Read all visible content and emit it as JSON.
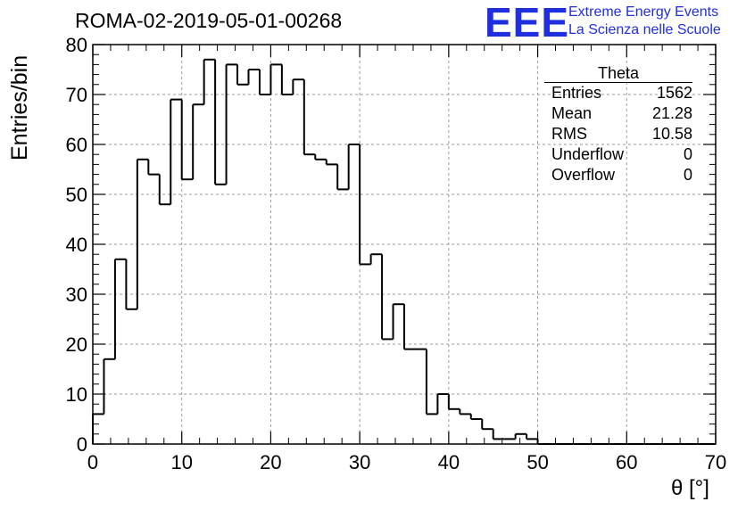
{
  "header": {
    "run_title": "ROMA-02-2019-05-01-00268",
    "logo_mark": "EEE",
    "logo_line1": "Extreme Energy Events",
    "logo_line2": "La Scienza nelle Scuole"
  },
  "stats": {
    "title": "Theta",
    "rows": [
      {
        "label": "Entries",
        "value": "1562"
      },
      {
        "label": "Mean",
        "value": "21.28"
      },
      {
        "label": "RMS",
        "value": "10.58"
      },
      {
        "label": "Underflow",
        "value": "0"
      },
      {
        "label": "Overflow",
        "value": "0"
      }
    ]
  },
  "chart_data": {
    "type": "bar",
    "style": "step-histogram",
    "xlabel": "θ [°]",
    "ylabel": "Entries/bin",
    "xlim": [
      0,
      70
    ],
    "ylim": [
      0,
      80
    ],
    "grid": true,
    "bin_width": 1.25,
    "xticks": [
      0,
      10,
      20,
      30,
      40,
      50,
      60,
      70
    ],
    "yticks": [
      0,
      10,
      20,
      30,
      40,
      50,
      60,
      70,
      80
    ],
    "values": [
      6,
      17,
      37,
      27,
      57,
      54,
      48,
      69,
      53,
      68,
      77,
      52,
      76,
      72,
      75,
      70,
      76,
      70,
      73,
      58,
      57,
      56,
      51,
      60,
      36,
      38,
      21,
      28,
      19,
      19,
      6,
      10,
      7,
      6,
      5,
      3,
      1,
      1,
      2,
      1,
      0,
      0,
      0,
      0,
      0,
      0,
      0,
      0,
      0,
      0,
      0,
      0,
      0,
      0,
      0,
      0
    ],
    "colors": {
      "line": "#000000",
      "grid": "#9a9a9a",
      "logo": "#1f2fe0"
    }
  }
}
